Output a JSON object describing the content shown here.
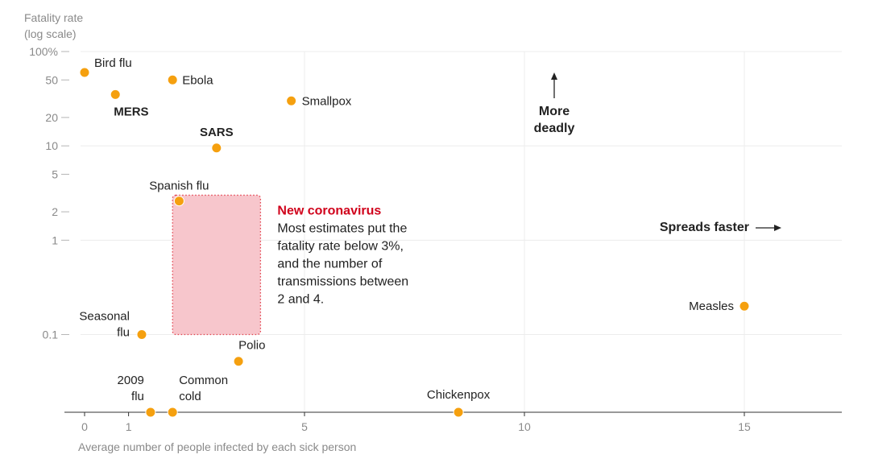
{
  "chart_data": {
    "type": "scatter",
    "title": "",
    "ylabel_lines": [
      "Fatality rate",
      "(log scale)"
    ],
    "xlabel": "Average number of people infected by each sick person",
    "y_scale": "log",
    "ylim": [
      0.015,
      100
    ],
    "xlim": [
      -0.5,
      17.3
    ],
    "x_ticks": [
      {
        "value": 0,
        "label": "0"
      },
      {
        "value": 1,
        "label": "1"
      },
      {
        "value": 5,
        "label": "5"
      },
      {
        "value": 10,
        "label": "10"
      },
      {
        "value": 15,
        "label": "15"
      }
    ],
    "y_ticks": [
      {
        "value": 100,
        "label": "100%",
        "major": true
      },
      {
        "value": 50,
        "label": "50",
        "major": false
      },
      {
        "value": 20,
        "label": "20",
        "major": false
      },
      {
        "value": 10,
        "label": "10",
        "major": true
      },
      {
        "value": 5,
        "label": "5",
        "major": false
      },
      {
        "value": 2,
        "label": "2",
        "major": false
      },
      {
        "value": 1,
        "label": "1",
        "major": true
      },
      {
        "value": 0.1,
        "label": "0.1",
        "major": true
      }
    ],
    "grid": true,
    "point_color": "#f5a00f",
    "points": [
      {
        "name": "Bird flu",
        "x": 0,
        "y": 60,
        "lines": [
          "Bird flu"
        ],
        "bold": false,
        "anchor": "start",
        "dx": 12,
        "dy": -7
      },
      {
        "name": "MERS",
        "x": 0.7,
        "y": 35,
        "lines": [
          "MERS"
        ],
        "bold": true,
        "anchor": "start",
        "dx": -2,
        "dy": 26
      },
      {
        "name": "Ebola",
        "x": 2,
        "y": 50,
        "lines": [
          "Ebola"
        ],
        "bold": false,
        "anchor": "start",
        "dx": 12,
        "dy": 5
      },
      {
        "name": "Smallpox",
        "x": 4.7,
        "y": 30,
        "lines": [
          "Smallpox"
        ],
        "bold": false,
        "anchor": "start",
        "dx": 13,
        "dy": 5
      },
      {
        "name": "SARS",
        "x": 3,
        "y": 9.5,
        "lines": [
          "SARS"
        ],
        "bold": true,
        "anchor": "middle",
        "dx": 0,
        "dy": -15
      },
      {
        "name": "Spanish flu",
        "x": 2.15,
        "y": 2.6,
        "lines": [
          "Spanish flu"
        ],
        "bold": false,
        "anchor": "middle",
        "dx": 0,
        "dy": -14
      },
      {
        "name": "Measles",
        "x": 15,
        "y": 0.2,
        "lines": [
          "Measles"
        ],
        "bold": false,
        "anchor": "end",
        "dx": -13,
        "dy": 5
      },
      {
        "name": "Seasonal flu",
        "x": 1.3,
        "y": 0.1,
        "lines": [
          "Seasonal",
          "flu"
        ],
        "bold": false,
        "anchor": "end",
        "dx": -15,
        "dy": -18
      },
      {
        "name": "Polio",
        "x": 3.5,
        "y": 0.052,
        "lines": [
          "Polio"
        ],
        "bold": false,
        "anchor": "start",
        "dx": 0,
        "dy": -15
      },
      {
        "name": "2009 flu",
        "x": 1.5,
        "y": 0.015,
        "lines": [
          "2009",
          "flu"
        ],
        "bold": false,
        "anchor": "end",
        "dx": -8,
        "dy": -35
      },
      {
        "name": "Common cold",
        "x": 2,
        "y": 0.015,
        "lines": [
          "Common",
          "cold"
        ],
        "bold": false,
        "anchor": "start",
        "dx": 8,
        "dy": -35
      },
      {
        "name": "Chickenpox",
        "x": 8.5,
        "y": 0.015,
        "lines": [
          "Chickenpox"
        ],
        "bold": false,
        "anchor": "middle",
        "dx": 0,
        "dy": -17
      }
    ],
    "highlight_region": {
      "x_range": [
        2,
        4
      ],
      "y_range": [
        0.1,
        3
      ],
      "fill": "#f7c6cc",
      "stroke": "#e3434f",
      "title": "New coronavirus",
      "text_lines": [
        "Most estimates put the",
        "fatality rate below 3%,",
        "and the number of",
        "transmissions between",
        "2 and 4."
      ]
    },
    "direction_labels": {
      "up": [
        "More",
        "deadly"
      ],
      "right": "Spreads faster"
    }
  }
}
